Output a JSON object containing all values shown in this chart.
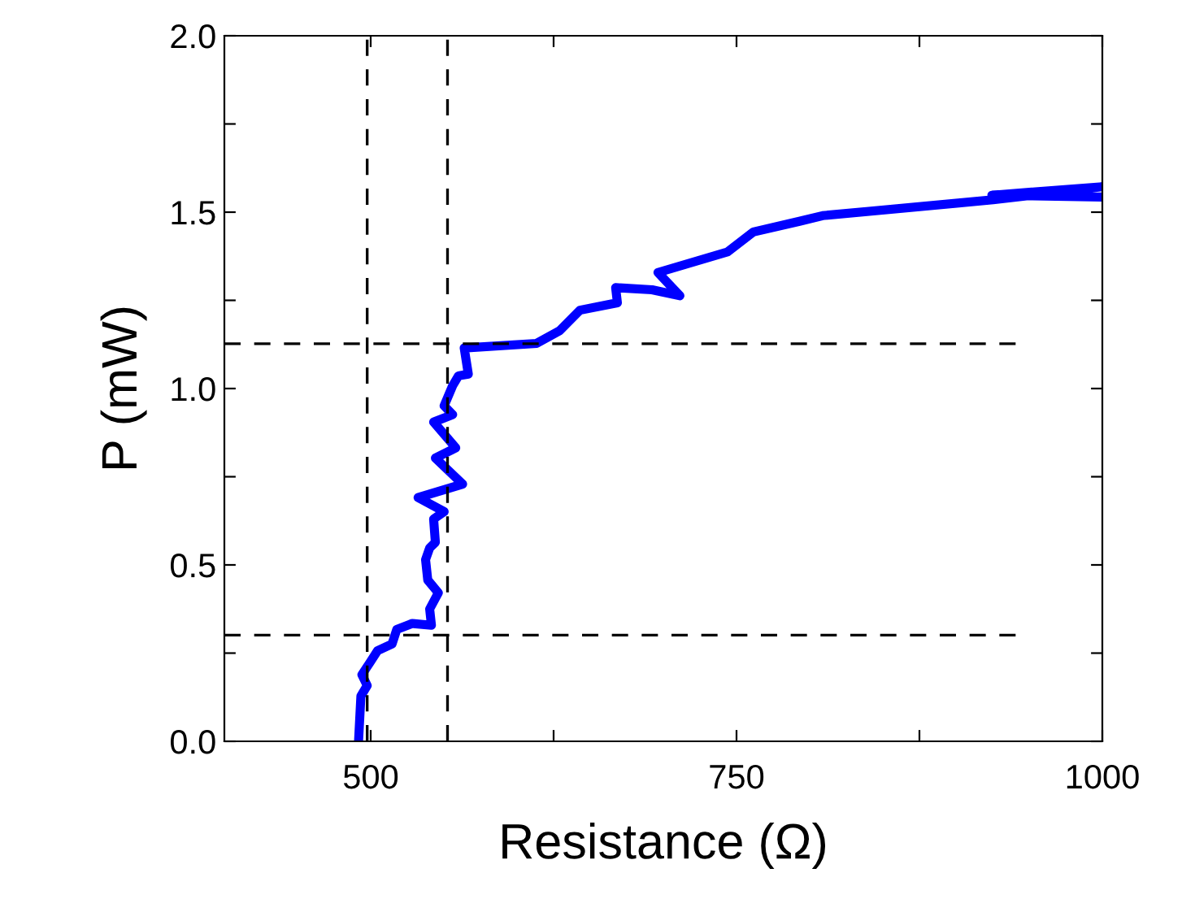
{
  "chart_data": {
    "type": "line",
    "xlabel": "Resistance (Ω)",
    "ylabel": "P (mW)",
    "xlim": [
      400,
      1000
    ],
    "ylim": [
      0,
      2.0
    ],
    "xticks": [
      {
        "value": 500,
        "label": "500"
      },
      {
        "value": 625,
        "label": null
      },
      {
        "value": 750,
        "label": "750"
      },
      {
        "value": 875,
        "label": null
      },
      {
        "value": 1000,
        "label": "1000"
      }
    ],
    "yticks": [
      {
        "value": 0,
        "label": "0.0"
      },
      {
        "value": 0.25,
        "label": null
      },
      {
        "value": 0.5,
        "label": "0.5"
      },
      {
        "value": 0.75,
        "label": null
      },
      {
        "value": 1.0,
        "label": "1.0"
      },
      {
        "value": 1.25,
        "label": null
      },
      {
        "value": 1.5,
        "label": "1.5"
      },
      {
        "value": 1.75,
        "label": null
      },
      {
        "value": 2.0,
        "label": "2.0"
      }
    ],
    "grid": false,
    "legend": false,
    "ref_lines": [
      {
        "axis": "x",
        "value": 497.6,
        "color": "#000000",
        "line_style": "dashed"
      },
      {
        "axis": "x",
        "value": 552.5,
        "color": "#000000",
        "line_style": "dashed"
      }
    ],
    "series": [
      {
        "color": "#0000ff",
        "line_style": "solid",
        "x": [
          491.7,
          493.3,
          497.6,
          494,
          499.6,
          504.7,
          514.6,
          517.8,
          528.4,
          541.5,
          540.3,
          546.2,
          539,
          537.5,
          540.3,
          544.2,
          543,
          550.2,
          532.4,
          562.8,
          544.2,
          558.1,
          543,
          556,
          550.2,
          556,
          560,
          566.7,
          563.9,
          613.4,
          629.1,
          643,
          668.6,
          667.4,
          692.3,
          711.3,
          696.3,
          743.7,
          761.5,
          793,
          808.8,
          925.3,
          1000,
          924.5,
          1000
        ],
        "values": [
          0,
          0.128,
          0.158,
          0.189,
          0.224,
          0.257,
          0.276,
          0.317,
          0.334,
          0.329,
          0.375,
          0.421,
          0.457,
          0.515,
          0.548,
          0.564,
          0.63,
          0.651,
          0.691,
          0.729,
          0.803,
          0.832,
          0.905,
          0.926,
          0.951,
          1.008,
          1.036,
          1.041,
          1.115,
          1.128,
          1.164,
          1.222,
          1.243,
          1.286,
          1.28,
          1.263,
          1.329,
          1.387,
          1.444,
          1.474,
          1.49,
          1.535,
          1.572,
          1.548,
          1.543
        ]
      },
      {
        "color": "#000000",
        "line_style": "dashed",
        "x": [
          400,
          942
        ],
        "values": [
          1.127,
          1.127
        ]
      },
      {
        "color": "#000000",
        "line_style": "dashed",
        "x": [
          400,
          942
        ],
        "values": [
          0.301,
          0.301
        ]
      }
    ]
  }
}
